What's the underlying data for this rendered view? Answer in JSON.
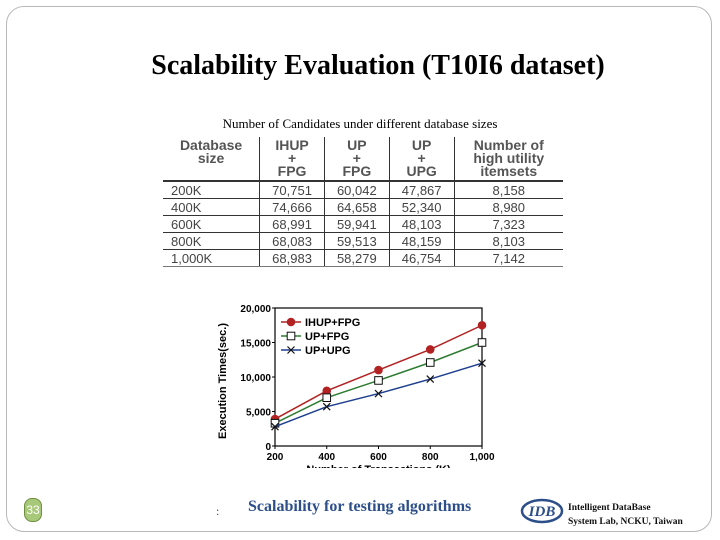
{
  "slide": {
    "title": "Scalability Evaluation (T10I6 dataset)",
    "table_caption": "Number of Candidates under different database sizes",
    "page_number": "33",
    "bottom_mark": ":",
    "figure_caption": "Scalability for testing algorithms",
    "logo_text": "IDB",
    "lab_line1": "Intelligent DataBase",
    "lab_line2": "System Lab, NCKU, Taiwan"
  },
  "table": {
    "headers": [
      [
        "Database",
        "size"
      ],
      [
        "IHUP",
        "+",
        "FPG"
      ],
      [
        "UP",
        "+",
        "FPG"
      ],
      [
        "UP",
        "+",
        "UPG"
      ],
      [
        "Number of",
        "high utility",
        "itemsets"
      ]
    ],
    "rows": [
      [
        "200K",
        "70,751",
        "60,042",
        "47,867",
        "8,158"
      ],
      [
        "400K",
        "74,666",
        "64,658",
        "52,340",
        "8,980"
      ],
      [
        "600K",
        "68,991",
        "59,941",
        "48,103",
        "7,323"
      ],
      [
        "800K",
        "68,083",
        "59,513",
        "48,159",
        "8,103"
      ],
      [
        "1,000K",
        "68,983",
        "58,279",
        "46,754",
        "7,142"
      ]
    ]
  },
  "chart_data": {
    "type": "line",
    "xlabel": "Number of Transactions (K)",
    "ylabel": "Execution Times(sec.)",
    "x": [
      200,
      400,
      600,
      800,
      1000
    ],
    "x_tick_labels": [
      "200",
      "400",
      "600",
      "800",
      "1,000"
    ],
    "y_tick_labels": [
      "0",
      "5,000",
      "10,000",
      "15,000",
      "20,000"
    ],
    "ylim": [
      0,
      20000
    ],
    "xlim": [
      200,
      1000
    ],
    "legend_position": "top-left",
    "series": [
      {
        "name": "IHUP+FPG",
        "marker": "filled-circle",
        "color": "#b22222",
        "values": [
          3900,
          8000,
          11000,
          14000,
          17500
        ]
      },
      {
        "name": "UP+FPG",
        "marker": "open-square",
        "color": "#2e7d32",
        "values": [
          3300,
          7000,
          9500,
          12100,
          15000
        ]
      },
      {
        "name": "UP+UPG",
        "marker": "cross",
        "color": "#1f3f8f",
        "values": [
          2800,
          5700,
          7600,
          9700,
          12000
        ]
      }
    ]
  }
}
